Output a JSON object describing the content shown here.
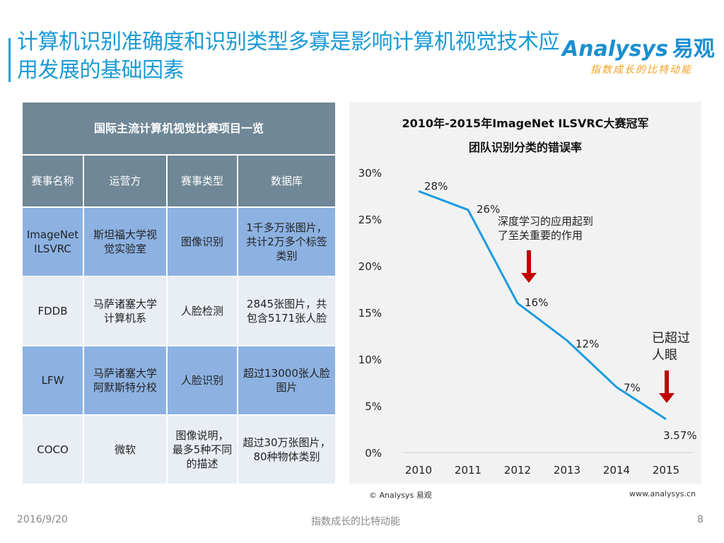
{
  "header": {
    "title": "计算机识别准确度和识别类型多寡是影响计算机视觉技术应用发展的基础因素",
    "logo_text": "Analysys",
    "logo_cn": "易观",
    "logo_slogan": "指数成长的比特动能"
  },
  "table": {
    "caption": "国际主流计算机视觉比赛项目一览",
    "columns": [
      "赛事名称",
      "运营方",
      "赛事类型",
      "数据库"
    ],
    "rows": [
      [
        "ImageNet\nILSVRC",
        "斯坦福大学视\n觉实验室",
        "图像识别",
        "1千多万张图片，\n共计2万多个标签\n类别"
      ],
      [
        "FDDB",
        "马萨诸塞大学\n计算机系",
        "人脸检测",
        "2845张图片，共\n包含5171张人脸"
      ],
      [
        "LFW",
        "马萨诸塞大学\n阿默斯特分校",
        "人脸识别",
        "超过13000张人脸\n图片"
      ],
      [
        "COCO",
        "微软",
        "图像说明，\n最多5种不同\n的描述",
        "超过30万张图片，\n80种物体类别"
      ]
    ]
  },
  "chart_data": {
    "type": "line",
    "title": "2010年-2015年ImageNet ILSVRC大赛冠军",
    "subtitle": "团队识别分类的错误率",
    "categories": [
      "2010",
      "2011",
      "2012",
      "2013",
      "2014",
      "2015"
    ],
    "values": [
      28,
      26,
      16,
      12,
      7,
      3.57
    ],
    "data_labels": [
      "28%",
      "26%",
      "16%",
      "12%",
      "7%",
      "3.57%"
    ],
    "y_ticks": [
      "0%",
      "5%",
      "10%",
      "15%",
      "20%",
      "25%",
      "30%"
    ],
    "ylim": [
      0,
      30
    ],
    "grid": false,
    "line_color": "#1a9be0",
    "annotations": [
      {
        "text": "深度学习的应用起到\n了至关重要的作用",
        "at": "2012",
        "arrow_color": "#c00000"
      },
      {
        "text": "已超过\n人眼",
        "at": "2015",
        "arrow_color": "#c00000"
      }
    ]
  },
  "footer": {
    "source": "© Analysys 易观",
    "url": "www.analysys.cn",
    "date": "2016/9/20",
    "slogan": "指数成长的比特动能",
    "page": "8"
  }
}
